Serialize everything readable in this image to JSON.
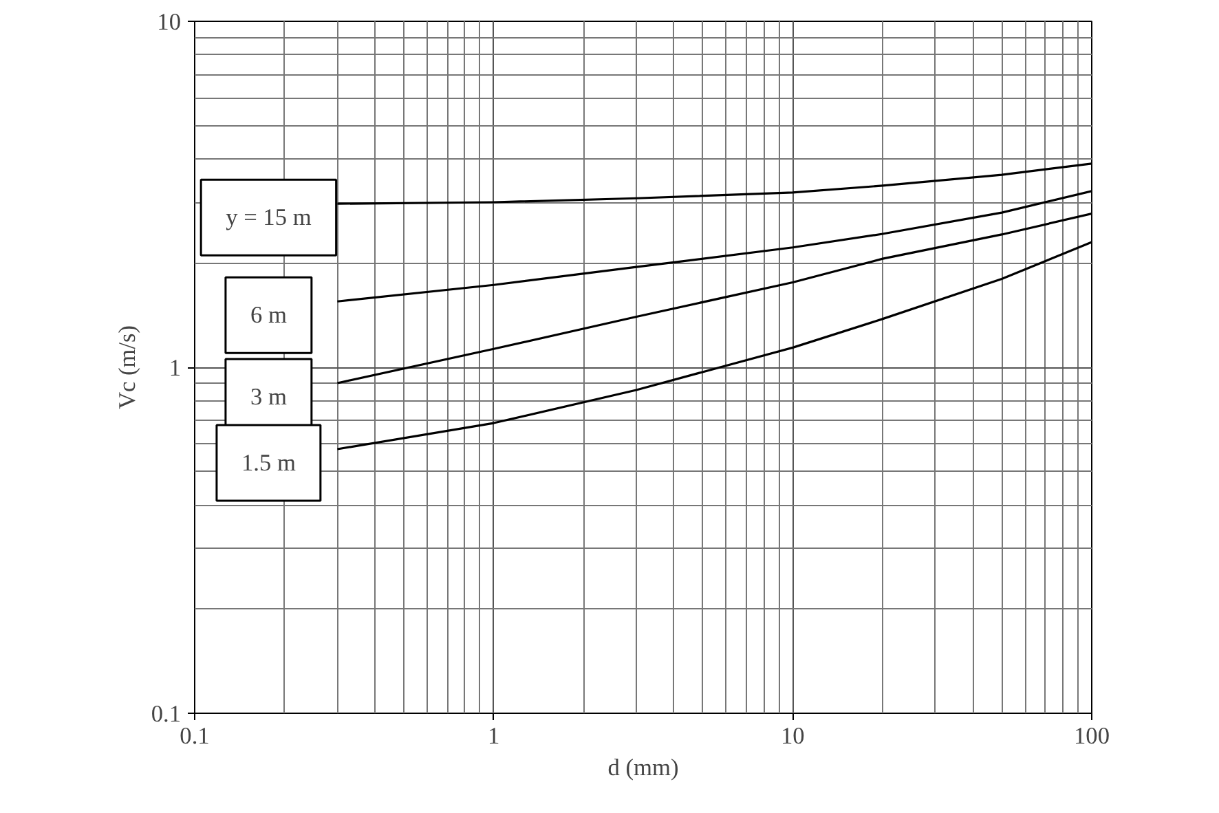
{
  "chart_data": {
    "type": "line",
    "xlabel": "d (mm)",
    "ylabel": "Vc (m/s)",
    "log": "xy",
    "xlim": [
      0.1,
      100
    ],
    "ylim": [
      0.1,
      10
    ],
    "xticks": [
      0.1,
      1,
      10,
      100
    ],
    "yticks": [
      0.1,
      1,
      10
    ],
    "grid": true,
    "series": [
      {
        "name": "y = 15 m",
        "color": "#000000",
        "x": [
          0.3,
          1,
          3,
          10,
          20,
          50,
          100
        ],
        "values": [
          2.97,
          3.0,
          3.08,
          3.2,
          3.35,
          3.6,
          3.88
        ]
      },
      {
        "name": "6 m",
        "color": "#000000",
        "x": [
          0.3,
          1,
          3,
          10,
          20,
          50,
          100
        ],
        "values": [
          1.55,
          1.73,
          1.95,
          2.22,
          2.43,
          2.8,
          3.23
        ]
      },
      {
        "name": "3 m",
        "color": "#000000",
        "x": [
          0.3,
          1,
          3,
          10,
          20,
          50,
          100
        ],
        "values": [
          0.9,
          1.13,
          1.4,
          1.76,
          2.06,
          2.42,
          2.78
        ]
      },
      {
        "name": "1.5 m",
        "color": "#000000",
        "x": [
          0.3,
          1,
          3,
          10,
          20,
          50,
          100
        ],
        "values": [
          0.58,
          0.69,
          0.86,
          1.14,
          1.38,
          1.8,
          2.3
        ]
      }
    ]
  }
}
